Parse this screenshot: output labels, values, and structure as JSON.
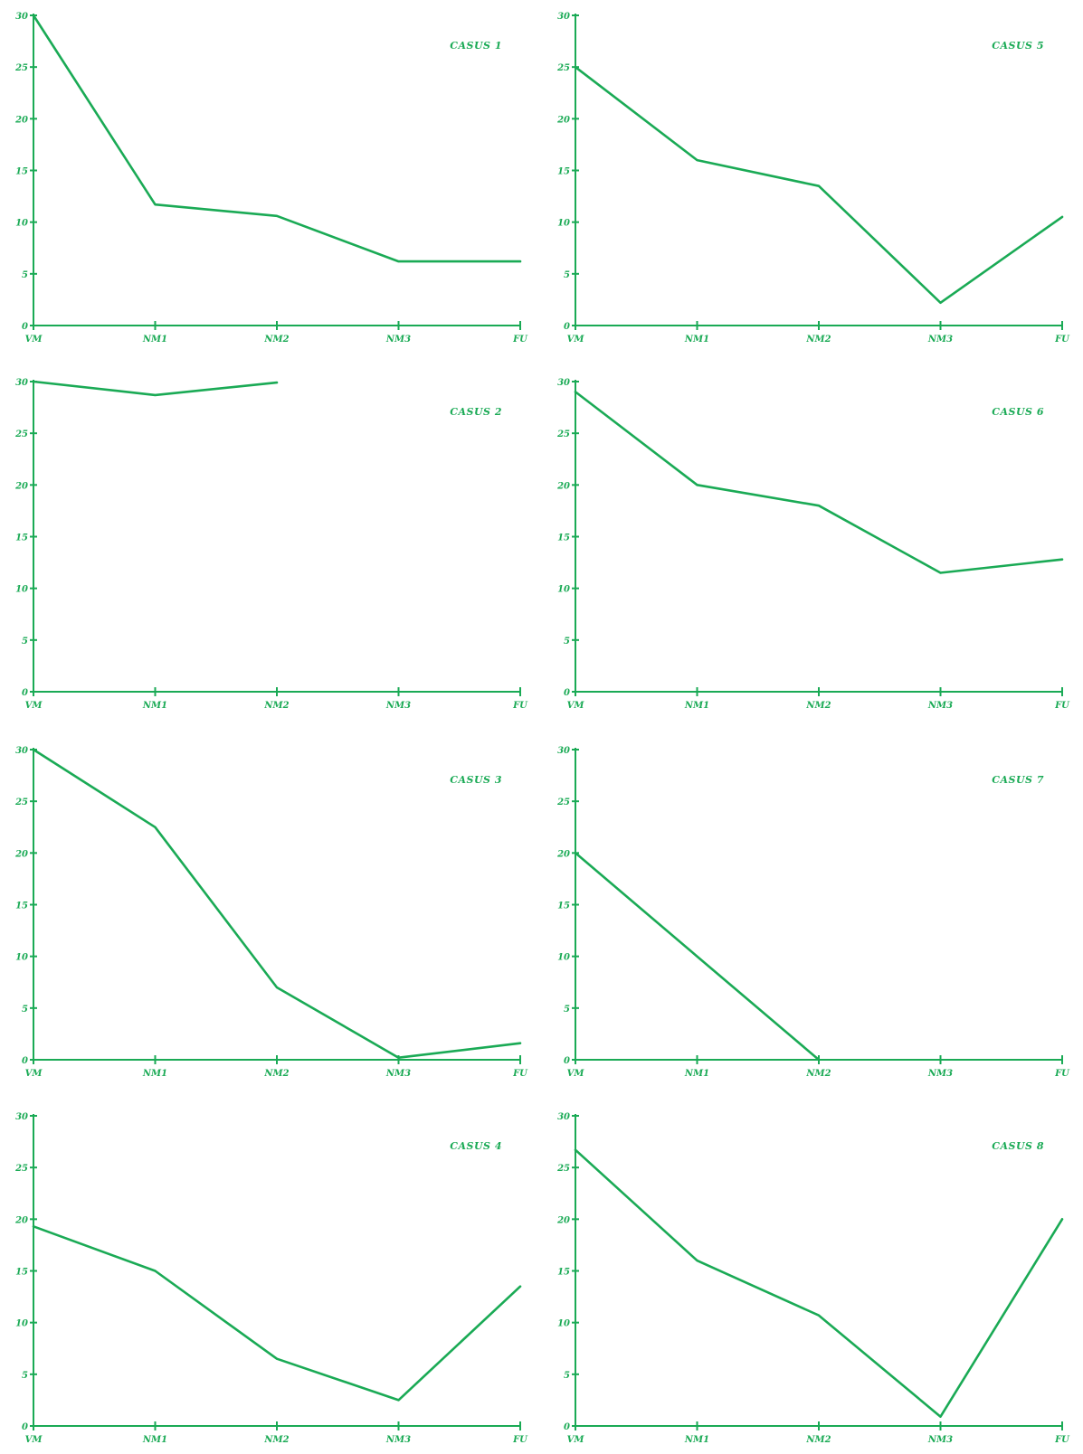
{
  "colors": {
    "accent": "#1aaa55",
    "background": "#ffffff"
  },
  "chart_data": [
    {
      "type": "line",
      "title": "CASUS 1",
      "x": [
        "VM",
        "NM1",
        "NM2",
        "NM3",
        "FU"
      ],
      "y_ticks": [
        "0",
        "5",
        "10",
        "15",
        "20",
        "25",
        "30"
      ],
      "ylim": [
        0,
        30
      ],
      "grid": false,
      "series": [
        {
          "values": [
            30,
            11.7,
            10.6,
            6.2,
            6.2
          ]
        }
      ]
    },
    {
      "type": "line",
      "title": "CASUS 2",
      "x": [
        "VM",
        "NM1",
        "NM2",
        "NM3",
        "FU"
      ],
      "y_ticks": [
        "0",
        "5",
        "10",
        "15",
        "20",
        "25",
        "30"
      ],
      "ylim": [
        0,
        30
      ],
      "grid": false,
      "series": [
        {
          "values": [
            30,
            28.7,
            29.9,
            null,
            null
          ]
        }
      ]
    },
    {
      "type": "line",
      "title": "CASUS 3",
      "x": [
        "VM",
        "NM1",
        "NM2",
        "NM3",
        "FU"
      ],
      "y_ticks": [
        "0",
        "5",
        "10",
        "15",
        "20",
        "25",
        "30"
      ],
      "ylim": [
        0,
        30
      ],
      "grid": false,
      "series": [
        {
          "values": [
            30,
            22.5,
            7,
            0.2,
            1.6
          ]
        }
      ]
    },
    {
      "type": "line",
      "title": "CASUS 4",
      "x": [
        "VM",
        "NM1",
        "NM2",
        "NM3",
        "FU"
      ],
      "y_ticks": [
        "0",
        "5",
        "10",
        "15",
        "20",
        "25",
        "30"
      ],
      "ylim": [
        0,
        30
      ],
      "grid": false,
      "series": [
        {
          "values": [
            19.3,
            15,
            6.5,
            2.5,
            13.5
          ]
        }
      ]
    },
    {
      "type": "line",
      "title": "CASUS 5",
      "x": [
        "VM",
        "NM1",
        "NM2",
        "NM3",
        "FU"
      ],
      "y_ticks": [
        "0",
        "5",
        "10",
        "15",
        "20",
        "25",
        "30"
      ],
      "ylim": [
        0,
        30
      ],
      "grid": false,
      "series": [
        {
          "values": [
            25,
            16,
            13.5,
            2.2,
            10.5
          ]
        }
      ]
    },
    {
      "type": "line",
      "title": "CASUS 6",
      "x": [
        "VM",
        "NM1",
        "NM2",
        "NM3",
        "FU"
      ],
      "y_ticks": [
        "0",
        "5",
        "10",
        "15",
        "20",
        "25",
        "30"
      ],
      "ylim": [
        0,
        30
      ],
      "grid": false,
      "series": [
        {
          "values": [
            29,
            20,
            18,
            11.5,
            12.8
          ]
        }
      ]
    },
    {
      "type": "line",
      "title": "CASUS 7",
      "x": [
        "VM",
        "NM1",
        "NM2",
        "NM3",
        "FU"
      ],
      "y_ticks": [
        "0",
        "5",
        "10",
        "15",
        "20",
        "25",
        "30"
      ],
      "ylim": [
        0,
        30
      ],
      "grid": false,
      "series": [
        {
          "values": [
            20,
            10,
            0,
            null,
            null
          ]
        }
      ]
    },
    {
      "type": "line",
      "title": "CASUS 8",
      "x": [
        "VM",
        "NM1",
        "NM2",
        "NM3",
        "FU"
      ],
      "y_ticks": [
        "0",
        "5",
        "10",
        "15",
        "20",
        "25",
        "30"
      ],
      "ylim": [
        0,
        30
      ],
      "grid": false,
      "series": [
        {
          "values": [
            26.7,
            16,
            10.7,
            0.9,
            20
          ]
        }
      ]
    }
  ]
}
